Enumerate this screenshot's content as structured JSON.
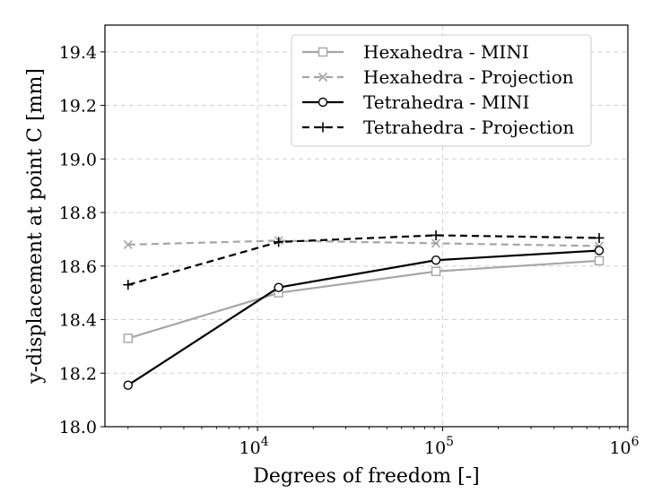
{
  "chart_data": {
    "type": "line",
    "title": "",
    "xlabel": "Degrees of freedom [-]",
    "ylabel": "y-displacement at point C [mm]",
    "xscale": "log",
    "xlim": [
      1500,
      1000000
    ],
    "ylim": [
      18.0,
      19.5
    ],
    "grid": true,
    "legend_position": "top-right",
    "x_ticks": [
      {
        "value": 10000,
        "base": "10",
        "exp": "4"
      },
      {
        "value": 100000,
        "base": "10",
        "exp": "5"
      },
      {
        "value": 1000000,
        "base": "10",
        "exp": "6"
      }
    ],
    "y_ticks": [
      {
        "value": 18.0,
        "label": "18.0"
      },
      {
        "value": 18.2,
        "label": "18.2"
      },
      {
        "value": 18.4,
        "label": "18.4"
      },
      {
        "value": 18.6,
        "label": "18.6"
      },
      {
        "value": 18.8,
        "label": "18.8"
      },
      {
        "value": 19.0,
        "label": "19.0"
      },
      {
        "value": 19.2,
        "label": "19.2"
      },
      {
        "value": 19.4,
        "label": "19.4"
      }
    ],
    "series": [
      {
        "name": "Hexahedra - MINI",
        "color": "#a6a6a6",
        "dash": "solid",
        "marker": "square",
        "x": [
          2000,
          13000,
          92000,
          700000
        ],
        "values": [
          18.33,
          18.5,
          18.58,
          18.62
        ]
      },
      {
        "name": "Hexahedra - Projection",
        "color": "#a6a6a6",
        "dash": "dashed",
        "marker": "x",
        "x": [
          2000,
          13000,
          92000,
          700000
        ],
        "values": [
          18.68,
          18.695,
          18.685,
          18.675
        ]
      },
      {
        "name": "Tetrahedra - MINI",
        "color": "#000000",
        "dash": "solid",
        "marker": "circle",
        "x": [
          2000,
          13000,
          92000,
          700000
        ],
        "values": [
          18.155,
          18.52,
          18.622,
          18.658
        ]
      },
      {
        "name": "Tetrahedra - Projection",
        "color": "#000000",
        "dash": "dashed",
        "marker": "plus",
        "x": [
          2000,
          13000,
          92000,
          700000
        ],
        "values": [
          18.53,
          18.69,
          18.715,
          18.705
        ]
      }
    ]
  }
}
